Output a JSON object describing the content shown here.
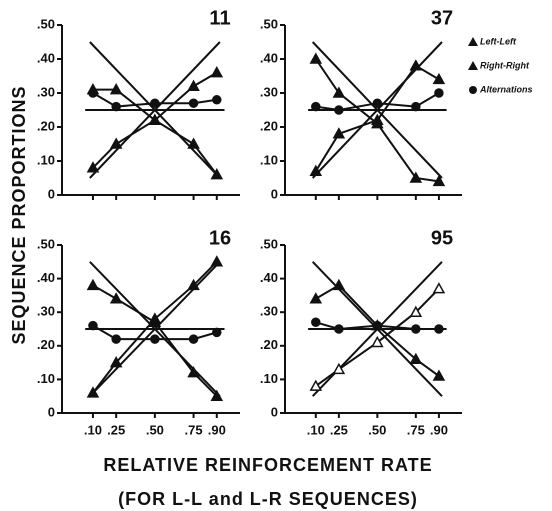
{
  "y_label": "SEQUENCE PROPORTIONS",
  "x_label": "RELATIVE REINFORCEMENT RATE",
  "x_sublabel": "(FOR L-L and L-R SEQUENCES)",
  "legend": [
    "Left-Left",
    "Right-Right",
    "Alternations"
  ],
  "chart_data": [
    {
      "type": "line",
      "title": "11",
      "x": [
        0.1,
        0.25,
        0.5,
        0.75,
        0.9
      ],
      "xlim": [
        -0.1,
        1.05
      ],
      "ylim": [
        0,
        0.5
      ],
      "xticks": [
        0.1,
        0.25,
        0.5,
        0.75,
        0.9
      ],
      "yticks": [
        0,
        {
          "value": 0.1,
          "label": ".10"
        },
        {
          "value": 0.2,
          "label": ".20"
        },
        {
          "value": 0.3,
          "label": ".30"
        },
        {
          "value": 0.4,
          "label": ".40"
        },
        {
          "value": 0.5,
          "label": ".50"
        }
      ],
      "series": [
        {
          "marker": "triangle",
          "filled": true,
          "color": "#111",
          "values": [
            0.31,
            0.31,
            0.22,
            0.15,
            0.06
          ]
        },
        {
          "marker": "triangle",
          "filled": true,
          "color": "#111",
          "values": [
            0.08,
            0.15,
            0.22,
            0.32,
            0.36
          ]
        },
        {
          "marker": "circle",
          "filled": true,
          "color": "#111",
          "values": [
            0.3,
            0.26,
            0.27,
            0.27,
            0.28
          ]
        }
      ],
      "reference_lines": [
        {
          "x": [
            0.08,
            0.92
          ],
          "values": [
            0.45,
            0.05
          ]
        },
        {
          "x": [
            0.08,
            0.92
          ],
          "values": [
            0.05,
            0.45
          ]
        },
        {
          "x": [
            0.05,
            0.95
          ],
          "values": [
            0.25,
            0.25
          ]
        }
      ]
    },
    {
      "type": "line",
      "title": "37",
      "x": [
        0.1,
        0.25,
        0.5,
        0.75,
        0.9
      ],
      "xlim": [
        -0.1,
        1.05
      ],
      "ylim": [
        0,
        0.5
      ],
      "xticks": [
        0.1,
        0.25,
        0.5,
        0.75,
        0.9
      ],
      "yticks": [
        0,
        {
          "value": 0.1,
          "label": ".10"
        },
        {
          "value": 0.2,
          "label": ".20"
        },
        {
          "value": 0.3,
          "label": ".30"
        },
        {
          "value": 0.4,
          "label": ".40"
        },
        {
          "value": 0.5,
          "label": ".50"
        }
      ],
      "series": [
        {
          "marker": "triangle",
          "filled": true,
          "color": "#111",
          "values": [
            0.4,
            0.3,
            0.21,
            0.05,
            0.04
          ]
        },
        {
          "marker": "triangle",
          "filled": true,
          "color": "#111",
          "values": [
            0.07,
            0.18,
            0.22,
            0.38,
            0.34
          ]
        },
        {
          "marker": "circle",
          "filled": true,
          "color": "#111",
          "values": [
            0.26,
            0.25,
            0.27,
            0.26,
            0.3
          ]
        }
      ],
      "reference_lines": [
        {
          "x": [
            0.08,
            0.92
          ],
          "values": [
            0.45,
            0.05
          ]
        },
        {
          "x": [
            0.08,
            0.92
          ],
          "values": [
            0.05,
            0.45
          ]
        },
        {
          "x": [
            0.05,
            0.95
          ],
          "values": [
            0.25,
            0.25
          ]
        }
      ]
    },
    {
      "type": "line",
      "title": "16",
      "x": [
        0.1,
        0.25,
        0.5,
        0.75,
        0.9
      ],
      "xlim": [
        -0.1,
        1.05
      ],
      "ylim": [
        0,
        0.5
      ],
      "xticks": [
        {
          "value": 0.1,
          "label": ".10"
        },
        {
          "value": 0.25,
          "label": ".25"
        },
        {
          "value": 0.5,
          "label": ".50"
        },
        {
          "value": 0.75,
          "label": ".75"
        },
        {
          "value": 0.9,
          "label": ".90"
        }
      ],
      "yticks": [
        0,
        {
          "value": 0.1,
          "label": ".10"
        },
        {
          "value": 0.2,
          "label": ".20"
        },
        {
          "value": 0.3,
          "label": ".30"
        },
        {
          "value": 0.4,
          "label": ".40"
        },
        {
          "value": 0.5,
          "label": ".50"
        }
      ],
      "series": [
        {
          "marker": "triangle",
          "filled": true,
          "color": "#111",
          "values": [
            0.38,
            0.34,
            0.27,
            0.12,
            0.05
          ]
        },
        {
          "marker": "triangle",
          "filled": true,
          "color": "#111",
          "values": [
            0.06,
            0.15,
            0.28,
            0.38,
            0.45
          ]
        },
        {
          "marker": "circle",
          "filled": true,
          "color": "#111",
          "values": [
            0.26,
            0.22,
            0.22,
            0.22,
            0.24
          ]
        }
      ],
      "reference_lines": [
        {
          "x": [
            0.08,
            0.92
          ],
          "values": [
            0.45,
            0.05
          ]
        },
        {
          "x": [
            0.08,
            0.92
          ],
          "values": [
            0.05,
            0.45
          ]
        },
        {
          "x": [
            0.05,
            0.95
          ],
          "values": [
            0.25,
            0.25
          ]
        }
      ]
    },
    {
      "type": "line",
      "title": "95",
      "x": [
        0.1,
        0.25,
        0.5,
        0.75,
        0.9
      ],
      "xlim": [
        -0.1,
        1.05
      ],
      "ylim": [
        0,
        0.5
      ],
      "xticks": [
        {
          "value": 0.1,
          "label": ".10"
        },
        {
          "value": 0.25,
          "label": ".25"
        },
        {
          "value": 0.5,
          "label": ".50"
        },
        {
          "value": 0.75,
          "label": ".75"
        },
        {
          "value": 0.9,
          "label": ".90"
        }
      ],
      "yticks": [
        0,
        {
          "value": 0.1,
          "label": ".10"
        },
        {
          "value": 0.2,
          "label": ".20"
        },
        {
          "value": 0.3,
          "label": ".30"
        },
        {
          "value": 0.4,
          "label": ".40"
        },
        {
          "value": 0.5,
          "label": ".50"
        }
      ],
      "series": [
        {
          "marker": "triangle",
          "filled": true,
          "color": "#111",
          "values": [
            0.34,
            0.38,
            0.26,
            0.16,
            0.11
          ]
        },
        {
          "marker": "triangle",
          "filled": false,
          "color": "#111",
          "values": [
            0.08,
            0.13,
            0.21,
            0.3,
            0.37
          ]
        },
        {
          "marker": "circle",
          "filled": true,
          "color": "#111",
          "values": [
            0.27,
            0.25,
            0.26,
            0.25,
            0.25
          ]
        }
      ],
      "reference_lines": [
        {
          "x": [
            0.08,
            0.92
          ],
          "values": [
            0.45,
            0.05
          ]
        },
        {
          "x": [
            0.08,
            0.92
          ],
          "values": [
            0.05,
            0.45
          ]
        },
        {
          "x": [
            0.05,
            0.95
          ],
          "values": [
            0.25,
            0.25
          ]
        }
      ]
    }
  ]
}
